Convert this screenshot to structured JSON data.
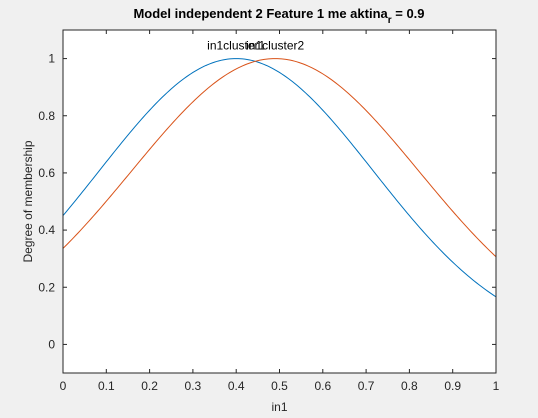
{
  "chart_data": {
    "type": "line",
    "title": {
      "main": "Model independent 2 Feature 1 me aktina",
      "subscript": "r",
      "suffix": " = 0.9"
    },
    "xlabel": "in1",
    "ylabel": "Degree of membership",
    "xlim": [
      0,
      1
    ],
    "ylim": [
      -0.1,
      1.1
    ],
    "xticks": [
      "0",
      "0.1",
      "0.2",
      "0.3",
      "0.4",
      "0.5",
      "0.6",
      "0.7",
      "0.8",
      "0.9",
      "1"
    ],
    "yticks": [
      "0",
      "0.2",
      "0.4",
      "0.6",
      "0.8",
      "1"
    ],
    "grid": false,
    "legend": "none",
    "series": [
      {
        "name": "in1cluster1",
        "color": "#0072BD",
        "center": 0.4,
        "sigma": 0.3168,
        "x": [
          0,
          0.1,
          0.2,
          0.3,
          0.4,
          0.5,
          0.6,
          0.7,
          0.8,
          0.9,
          1
        ],
        "values": [
          0.45,
          0.64,
          0.82,
          0.95,
          1.0,
          0.95,
          0.82,
          0.64,
          0.45,
          0.29,
          0.17
        ]
      },
      {
        "name": "in1cluster2",
        "color": "#D95319",
        "center": 0.49,
        "sigma": 0.3317,
        "x": [
          0,
          0.1,
          0.2,
          0.3,
          0.4,
          0.5,
          0.6,
          0.7,
          0.8,
          0.9,
          1
        ],
        "values": [
          0.31,
          0.49,
          0.68,
          0.85,
          0.96,
          1.0,
          0.95,
          0.82,
          0.65,
          0.47,
          0.27
        ]
      }
    ]
  }
}
